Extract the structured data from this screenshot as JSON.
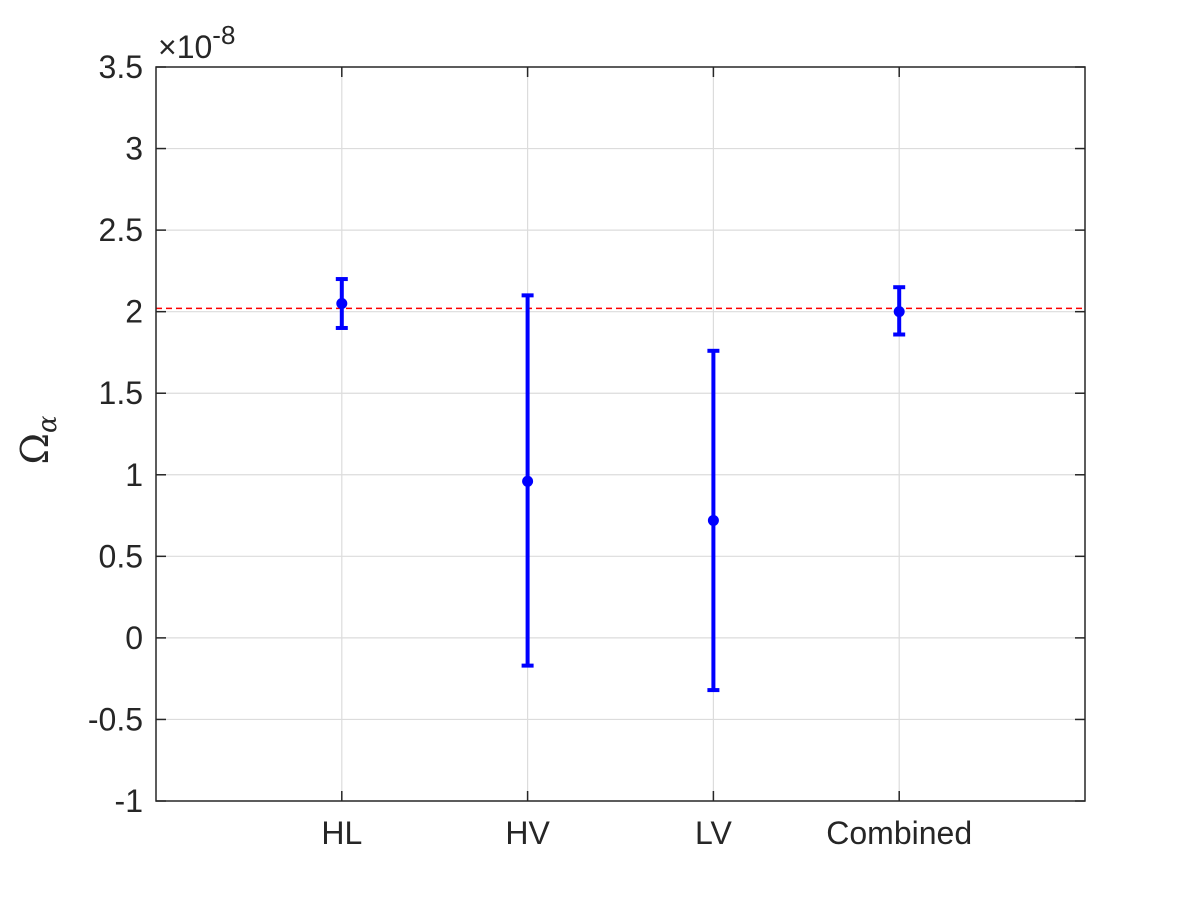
{
  "chart_data": {
    "type": "scatter",
    "title": "",
    "xlabel": "",
    "ylabel_main": "Ω",
    "ylabel_sub": "α",
    "exponent_prefix": "×10",
    "exponent_power": "-8",
    "categories": [
      "HL",
      "HV",
      "LV",
      "Combined"
    ],
    "x_positions": [
      1,
      2,
      3,
      4
    ],
    "xlim": [
      0,
      5
    ],
    "ylim": [
      -1,
      3.5
    ],
    "yticks": [
      -1,
      -0.5,
      0,
      0.5,
      1,
      1.5,
      2,
      2.5,
      3,
      3.5
    ],
    "ytick_labels": [
      "-1",
      "-0.5",
      "0",
      "0.5",
      "1",
      "1.5",
      "2",
      "2.5",
      "3",
      "3.5"
    ],
    "grid": true,
    "series": [
      {
        "values": [
          2.05,
          0.96,
          0.72,
          2.0
        ],
        "err_lower": [
          1.9,
          -0.17,
          -0.32,
          1.86
        ],
        "err_upper": [
          2.2,
          2.1,
          1.76,
          2.15
        ],
        "color": "#0000ff"
      }
    ],
    "reference_line": {
      "y": 2.02,
      "style": "dashed",
      "color": "#ff0000"
    }
  }
}
